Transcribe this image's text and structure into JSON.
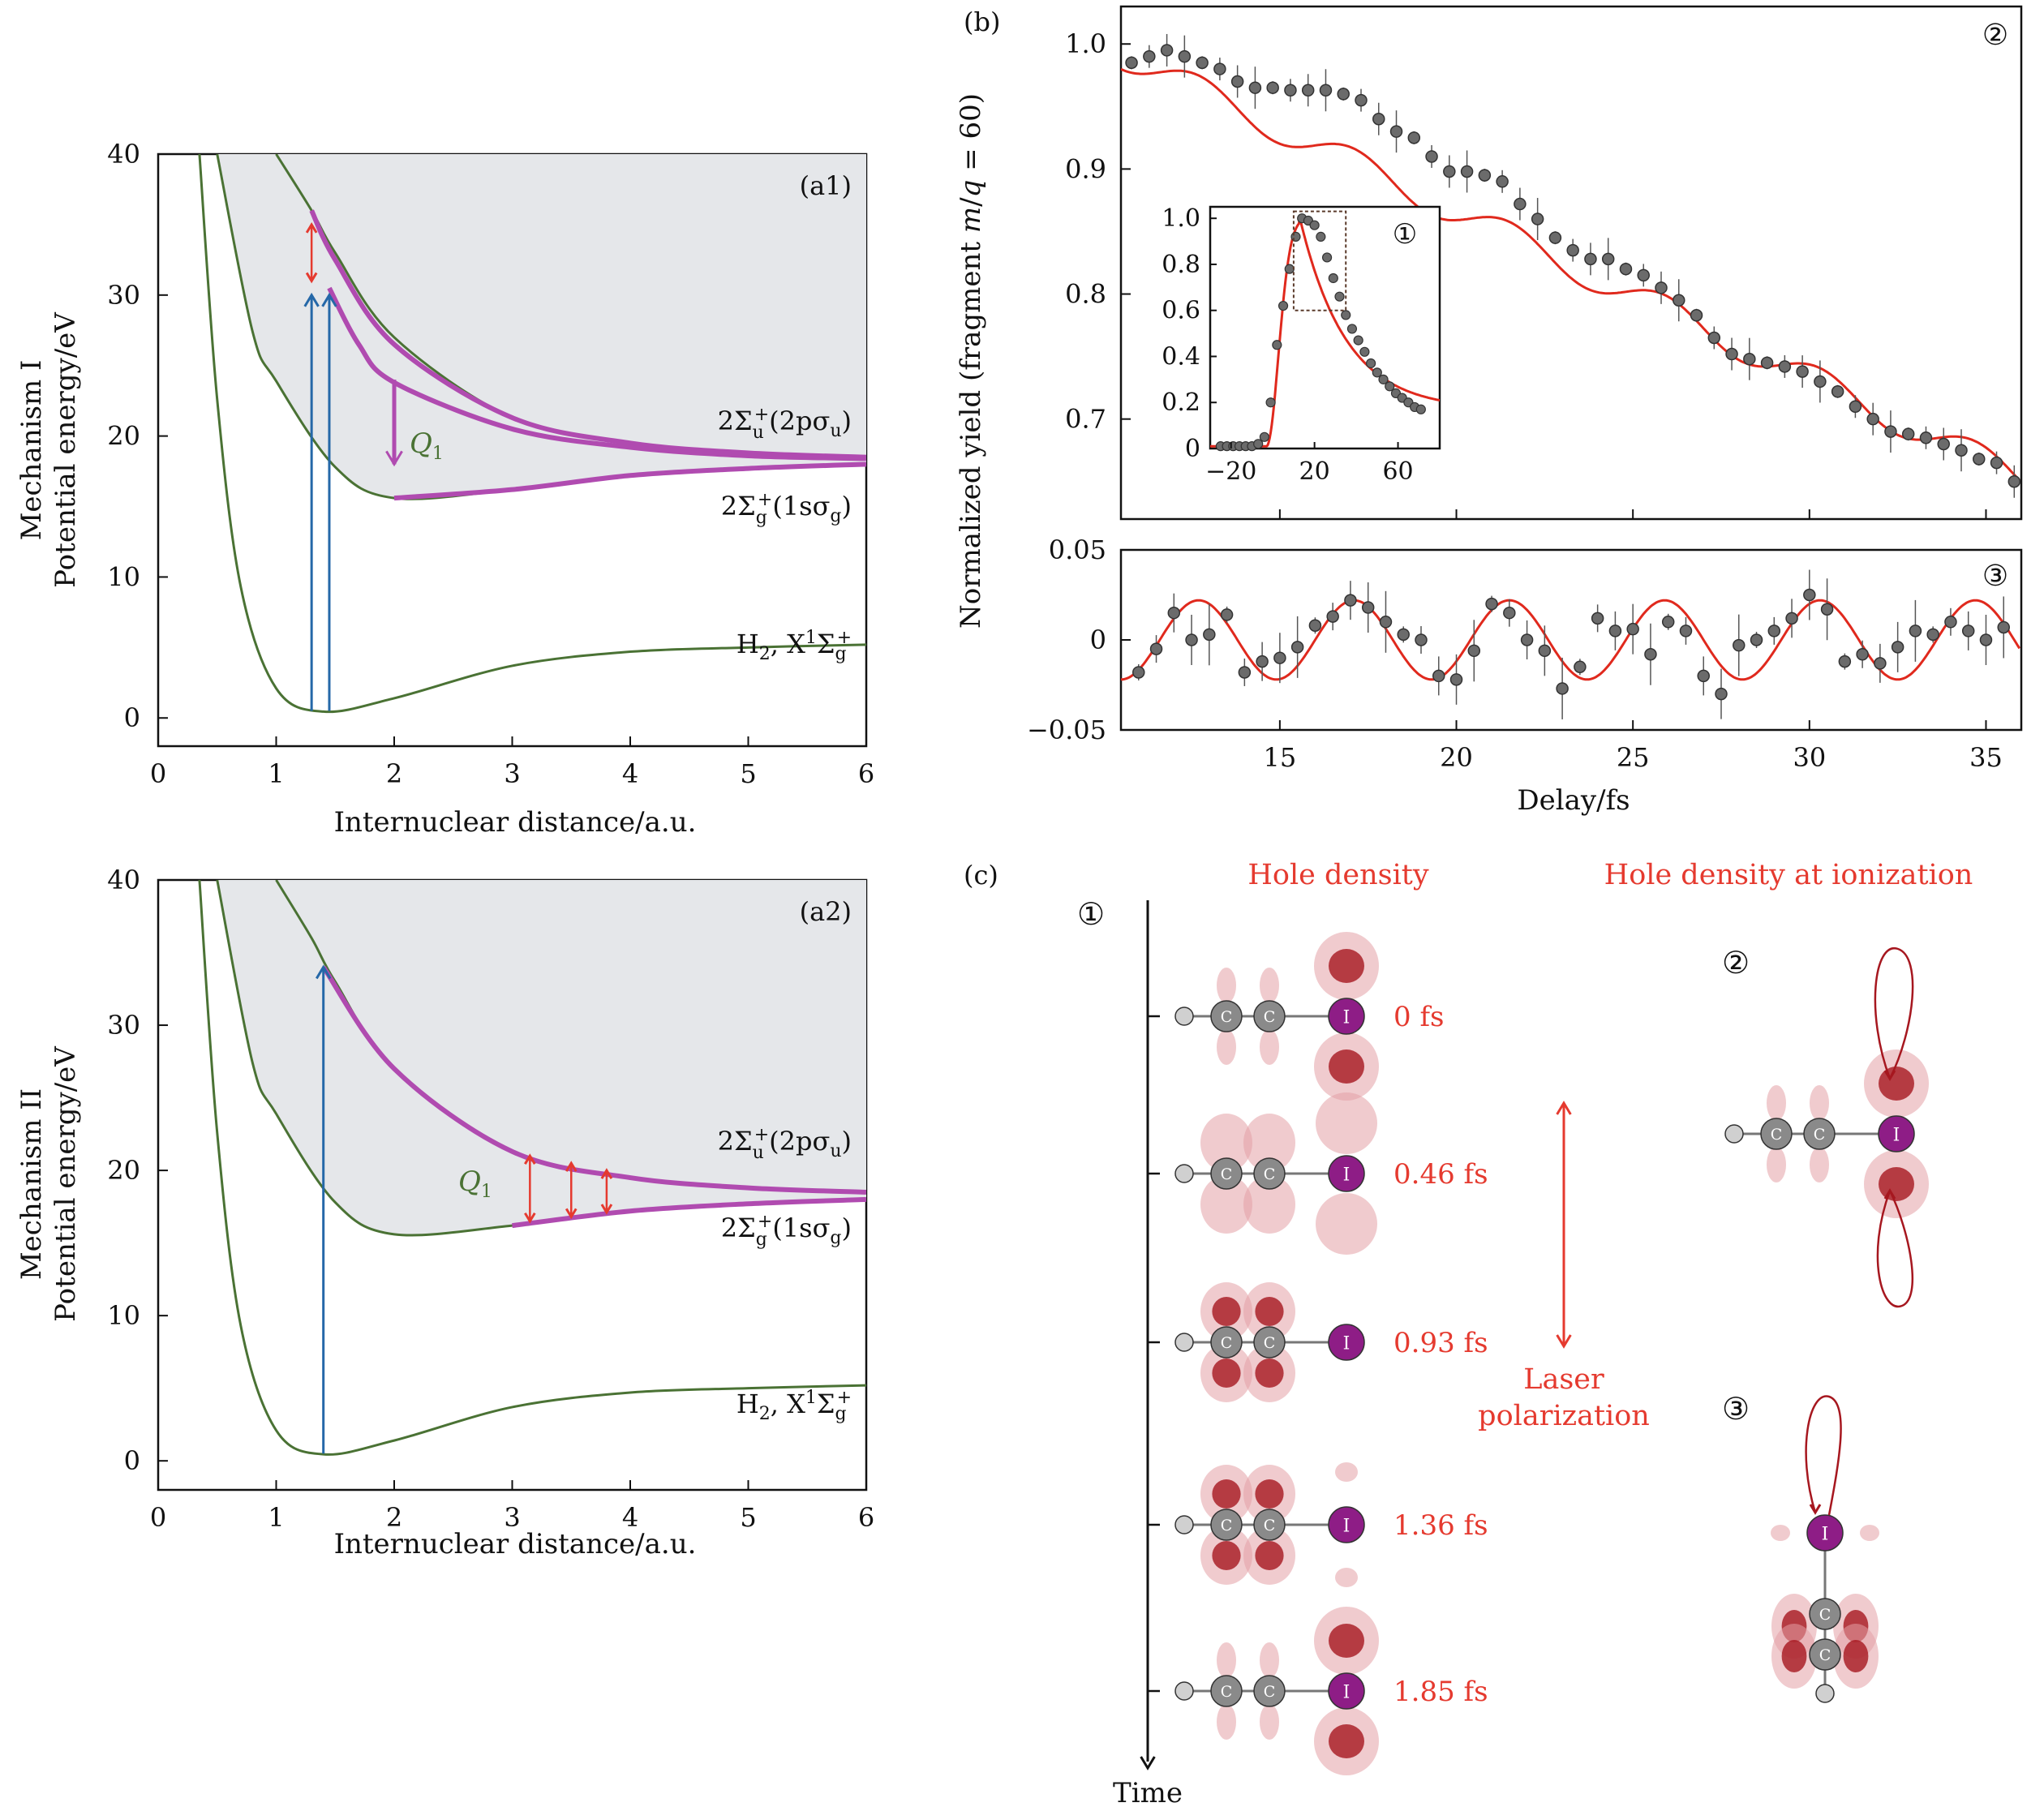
{
  "colors": {
    "curve": "#4a7234",
    "magenta": "#b04bb0",
    "blue": "#2568a8",
    "red": "#e53a2f",
    "shade": "#e5e7ea",
    "fit": "#e0291d",
    "marker": "#6b6b6b",
    "errbar": "#555555",
    "hole": "#e3a0a6",
    "hole_dark": "#a6171f",
    "iodine": "#8e1d86",
    "carbon": "#8a8a8a"
  },
  "panel_a": {
    "a1": {
      "tag": "(a1)",
      "ylabel": "Mechanism I",
      "ylabel2": "Potential energy/eV",
      "xlabel": "Internuclear distance/a.u.",
      "upper_label": "2Σu+(2pσu)",
      "lower_label": "2Σg+(1sσg)",
      "ground_label": "H2, X1Σg+",
      "q_label": "Q1"
    },
    "a2": {
      "tag": "(a2)",
      "ylabel": "Mechanism II",
      "ylabel2": "Potential energy/eV",
      "xlabel": "Internuclear distance/a.u.",
      "upper_label": "2Σu+(2pσu)",
      "lower_label": "2Σg+(1sσg)",
      "ground_label": "H2, X1Σg+",
      "q_label": "Q1"
    }
  },
  "panel_b": {
    "tag": "(b)",
    "ylabel": "Normalized yield (fragment m/q = 60)",
    "xlabel": "Delay/fs",
    "circle2": "②",
    "circle3": "③",
    "inset_circle": "①"
  },
  "panel_c": {
    "tag": "(c)",
    "circle1": "①",
    "circle2": "②",
    "circle3": "③",
    "title_left": "Hole density",
    "title_right": "Hole density at ionization",
    "time_label": "Time",
    "laser_label_1": "Laser",
    "laser_label_2": "polarization",
    "time_labels": [
      "0 fs",
      "0.46 fs",
      "0.93 fs",
      "1.36 fs",
      "1.85 fs"
    ],
    "atom_c": "C",
    "atom_i": "I"
  },
  "chart_data": [
    {
      "id": "a1",
      "type": "line",
      "xlim": [
        0,
        6
      ],
      "ylim": [
        -2,
        40
      ],
      "xticks": [
        0,
        1,
        2,
        3,
        4,
        5,
        6
      ],
      "yticks": [
        0,
        10,
        20,
        30,
        40
      ],
      "xlabel": "Internuclear distance/a.u.",
      "ylabel": "Potential energy/eV",
      "series": [
        {
          "name": "H2, X1Σg+",
          "x": [
            0.35,
            0.5,
            0.7,
            1.0,
            1.4,
            2.0,
            3.0,
            4.0,
            5.0,
            6.0
          ],
          "y": [
            40,
            22.6,
            9.3,
            2.1,
            0.45,
            1.4,
            3.7,
            4.7,
            5.0,
            5.2
          ]
        },
        {
          "name": "2Σg+(1sσg)",
          "x": [
            0.5,
            0.8,
            1.0,
            1.5,
            2.0,
            3.0,
            4.0,
            5.0,
            6.0
          ],
          "y": [
            40,
            27.4,
            23.9,
            17.8,
            15.6,
            16.2,
            17.2,
            17.7,
            18.0
          ]
        },
        {
          "name": "2Σu+(2pσu)",
          "x": [
            1.0,
            1.3,
            1.5,
            2.0,
            3.0,
            4.0,
            5.0,
            6.0
          ],
          "y": [
            40,
            36,
            33,
            27,
            21.3,
            19.5,
            18.8,
            18.5
          ]
        }
      ],
      "arrows": [
        {
          "kind": "blue",
          "x": 1.3,
          "y0": 0.5,
          "y1": 30
        },
        {
          "kind": "blue",
          "x": 1.45,
          "y0": 0.5,
          "y1": 30
        },
        {
          "kind": "red",
          "x": 1.3,
          "y0": 31,
          "y1": 35
        },
        {
          "kind": "magenta",
          "x": 2.0,
          "y0": 24,
          "y1": 18
        }
      ]
    },
    {
      "id": "a2",
      "type": "line",
      "xlim": [
        0,
        6
      ],
      "ylim": [
        -2,
        40
      ],
      "xticks": [
        0,
        1,
        2,
        3,
        4,
        5,
        6
      ],
      "yticks": [
        0,
        10,
        20,
        30,
        40
      ],
      "xlabel": "Internuclear distance/a.u.",
      "ylabel": "Potential energy/eV",
      "series": [
        {
          "name": "H2, X1Σg+",
          "x": [
            0.35,
            0.5,
            0.7,
            1.0,
            1.4,
            2.0,
            3.0,
            4.0,
            5.0,
            6.0
          ],
          "y": [
            40,
            22.6,
            9.3,
            2.1,
            0.45,
            1.4,
            3.7,
            4.7,
            5.0,
            5.2
          ]
        },
        {
          "name": "2Σg+(1sσg)",
          "x": [
            0.5,
            0.8,
            1.0,
            1.5,
            2.0,
            3.0,
            4.0,
            5.0,
            6.0
          ],
          "y": [
            40,
            27.4,
            23.9,
            17.8,
            15.6,
            16.2,
            17.2,
            17.7,
            18.0
          ]
        },
        {
          "name": "2Σu+(2pσu)",
          "x": [
            1.0,
            1.3,
            1.5,
            2.0,
            3.0,
            4.0,
            5.0,
            6.0
          ],
          "y": [
            40,
            36,
            33,
            27,
            21.3,
            19.5,
            18.8,
            18.5
          ]
        }
      ],
      "arrows": [
        {
          "kind": "blue",
          "x": 1.4,
          "y0": 0.5,
          "y1": 34
        },
        {
          "kind": "red",
          "x": 3.15,
          "y0": 16.5,
          "y1": 21
        },
        {
          "kind": "red",
          "x": 3.5,
          "y0": 16.8,
          "y1": 20.5
        },
        {
          "kind": "red",
          "x": 3.8,
          "y0": 17.1,
          "y1": 20
        }
      ]
    },
    {
      "id": "b_main",
      "type": "scatter",
      "xlim": [
        10.5,
        36
      ],
      "ylim": [
        0.62,
        1.03
      ],
      "yticks": [
        0.7,
        0.8,
        0.9,
        1.0
      ],
      "ylabel": "Normalized yield (fragment m/q = 60)",
      "x": [
        10.8,
        11.3,
        11.8,
        12.3,
        12.8,
        13.3,
        13.8,
        14.3,
        14.8,
        15.3,
        15.8,
        16.3,
        16.8,
        17.3,
        17.8,
        18.3,
        18.8,
        19.3,
        19.8,
        20.3,
        20.8,
        21.3,
        21.8,
        22.3,
        22.8,
        23.3,
        23.8,
        24.3,
        24.8,
        25.3,
        25.8,
        26.3,
        26.8,
        27.3,
        27.8,
        28.3,
        28.8,
        29.3,
        29.8,
        30.3,
        30.8,
        31.3,
        31.8,
        32.3,
        32.8,
        33.3,
        33.8,
        34.3,
        34.8,
        35.3,
        35.8
      ],
      "y": [
        0.985,
        0.99,
        0.995,
        0.99,
        0.985,
        0.98,
        0.97,
        0.965,
        0.965,
        0.963,
        0.963,
        0.963,
        0.96,
        0.955,
        0.94,
        0.93,
        0.925,
        0.91,
        0.898,
        0.898,
        0.895,
        0.89,
        0.872,
        0.86,
        0.845,
        0.835,
        0.828,
        0.828,
        0.82,
        0.815,
        0.805,
        0.795,
        0.783,
        0.765,
        0.752,
        0.748,
        0.745,
        0.742,
        0.738,
        0.73,
        0.722,
        0.71,
        0.7,
        0.69,
        0.688,
        0.685,
        0.68,
        0.675,
        0.668,
        0.665,
        0.65
      ],
      "fit_label": ""
    },
    {
      "id": "b_inset",
      "type": "scatter",
      "xlim": [
        -30,
        80
      ],
      "ylim": [
        0,
        1.05
      ],
      "xticks": [
        -20,
        20,
        60
      ],
      "yticks": [
        0,
        0.2,
        0.4,
        0.6,
        0.8,
        1.0
      ],
      "x": [
        -25,
        -22,
        -19,
        -16,
        -13,
        -10,
        -7,
        -4,
        -1,
        2,
        5,
        8,
        11,
        14,
        17,
        20,
        23,
        26,
        29,
        32,
        35,
        38,
        41,
        44,
        47,
        50,
        53,
        56,
        59,
        62,
        65,
        68,
        71
      ],
      "y": [
        0.01,
        0.01,
        0.01,
        0.01,
        0.01,
        0.01,
        0.02,
        0.05,
        0.2,
        0.45,
        0.62,
        0.78,
        0.92,
        1.0,
        0.99,
        0.97,
        0.92,
        0.83,
        0.74,
        0.66,
        0.58,
        0.52,
        0.47,
        0.42,
        0.37,
        0.33,
        0.3,
        0.27,
        0.24,
        0.22,
        0.2,
        0.18,
        0.17
      ]
    },
    {
      "id": "b_residual",
      "type": "scatter",
      "xlim": [
        10.5,
        36
      ],
      "ylim": [
        -0.05,
        0.05
      ],
      "xticks": [
        15,
        20,
        25,
        30,
        35
      ],
      "yticks": [
        -0.05,
        0,
        0.05
      ],
      "xlabel": "Delay/fs",
      "x": [
        11,
        11.5,
        12,
        12.5,
        13,
        13.5,
        14,
        14.5,
        15,
        15.5,
        16,
        16.5,
        17,
        17.5,
        18,
        18.5,
        19,
        19.5,
        20,
        20.5,
        21,
        21.5,
        22,
        22.5,
        23,
        23.5,
        24,
        24.5,
        25,
        25.5,
        26,
        26.5,
        27,
        27.5,
        28,
        28.5,
        29,
        29.5,
        30,
        30.5,
        31,
        31.5,
        32,
        32.5,
        33,
        33.5,
        34,
        34.5,
        35,
        35.5
      ],
      "y": [
        -0.018,
        -0.005,
        0.015,
        0.0,
        0.003,
        0.014,
        -0.018,
        -0.012,
        -0.01,
        -0.004,
        0.008,
        0.013,
        0.022,
        0.018,
        0.01,
        0.003,
        0.0,
        -0.02,
        -0.022,
        -0.006,
        0.02,
        0.015,
        0.0,
        -0.006,
        -0.027,
        -0.015,
        0.012,
        0.005,
        0.006,
        -0.008,
        0.01,
        0.005,
        -0.02,
        -0.03,
        -0.003,
        0.0,
        0.005,
        0.012,
        0.025,
        0.017,
        -0.012,
        -0.008,
        -0.013,
        -0.004,
        0.005,
        0.003,
        0.01,
        0.005,
        0.0,
        0.007
      ],
      "fit": {
        "amplitude": 0.022,
        "period_fs": 4.4,
        "phase_peak_fs": 12.7
      }
    }
  ]
}
